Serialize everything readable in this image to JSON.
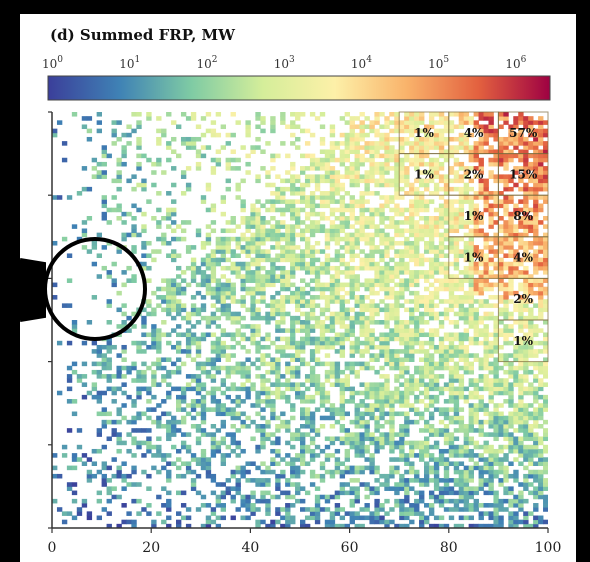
{
  "chart_data": {
    "type": "heatmap",
    "title": "(d) Summed FRP, MW",
    "colorbar": {
      "ticks": [
        {
          "base": "10",
          "exp": "0"
        },
        {
          "base": "10",
          "exp": "1"
        },
        {
          "base": "10",
          "exp": "2"
        },
        {
          "base": "10",
          "exp": "3"
        },
        {
          "base": "10",
          "exp": "4"
        },
        {
          "base": "10",
          "exp": "5"
        },
        {
          "base": "10",
          "exp": "6"
        }
      ],
      "range_log10": [
        0,
        6.5
      ],
      "colors": [
        "#3b3f9a",
        "#3f82b5",
        "#7fcba4",
        "#d5ee9a",
        "#fdf0a8",
        "#f9b36b",
        "#e3613f",
        "#9e0142"
      ]
    },
    "xlim": [
      0,
      100
    ],
    "x_ticks": [
      "0",
      "20",
      "40",
      "60",
      "80",
      "100"
    ],
    "ylim": [
      0,
      100
    ],
    "grid_cells": [
      {
        "label": "1%",
        "x0": 70,
        "x1": 80,
        "y0": 90,
        "y1": 100
      },
      {
        "label": "4%",
        "x0": 80,
        "x1": 90,
        "y0": 90,
        "y1": 100
      },
      {
        "label": "57%",
        "x0": 90,
        "x1": 100,
        "y0": 90,
        "y1": 100
      },
      {
        "label": "1%",
        "x0": 70,
        "x1": 80,
        "y0": 80,
        "y1": 90
      },
      {
        "label": "2%",
        "x0": 80,
        "x1": 90,
        "y0": 80,
        "y1": 90
      },
      {
        "label": "15%",
        "x0": 90,
        "x1": 100,
        "y0": 80,
        "y1": 90
      },
      {
        "label": "1%",
        "x0": 80,
        "x1": 90,
        "y0": 70,
        "y1": 80
      },
      {
        "label": "8%",
        "x0": 90,
        "x1": 100,
        "y0": 70,
        "y1": 80
      },
      {
        "label": "1%",
        "x0": 80,
        "x1": 90,
        "y0": 60,
        "y1": 70
      },
      {
        "label": "4%",
        "x0": 90,
        "x1": 100,
        "y0": 60,
        "y1": 70
      },
      {
        "label": "2%",
        "x0": 90,
        "x1": 100,
        "y0": 50,
        "y1": 60
      },
      {
        "label": "1%",
        "x0": 90,
        "x1": 100,
        "y0": 40,
        "y1": 50
      }
    ]
  }
}
